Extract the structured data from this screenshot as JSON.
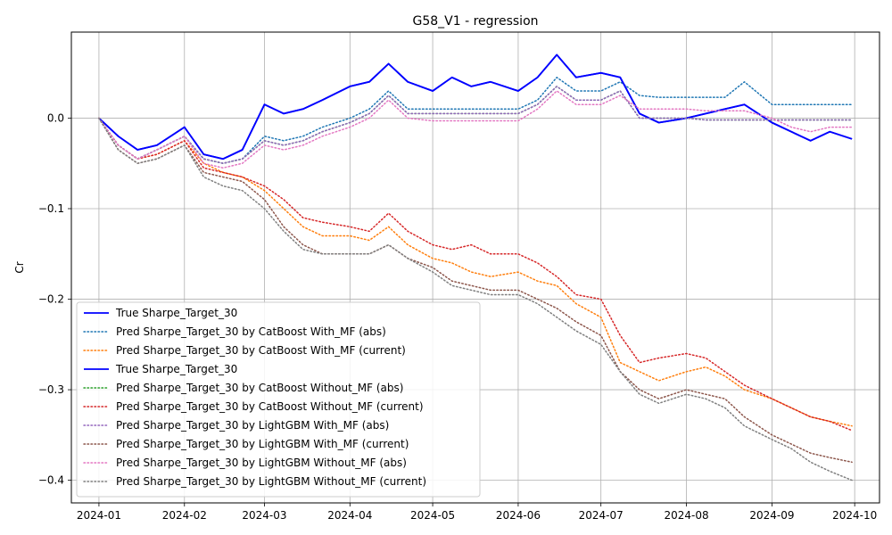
{
  "chart_data": {
    "type": "line",
    "title": "G58_V1 - regression",
    "xlabel": "",
    "ylabel": "Cr",
    "x_ticks": [
      "2024-01",
      "2024-02",
      "2024-03",
      "2024-04",
      "2024-05",
      "2024-06",
      "2024-07",
      "2024-08",
      "2024-09",
      "2024-10"
    ],
    "y_ticks": [
      "0.0",
      "−0.1",
      "−0.2",
      "−0.3",
      "−0.4"
    ],
    "y_tick_values": [
      0.0,
      -0.1,
      -0.2,
      -0.3,
      -0.4
    ],
    "xlim": [
      "2023-12-22",
      "2024-10-10"
    ],
    "ylim": [
      -0.425,
      0.095
    ],
    "grid": true,
    "legend_position": "lower-left",
    "dates": [
      "2024-01-01",
      "2024-01-08",
      "2024-01-15",
      "2024-01-22",
      "2024-02-01",
      "2024-02-08",
      "2024-02-15",
      "2024-02-22",
      "2024-03-01",
      "2024-03-08",
      "2024-03-15",
      "2024-03-22",
      "2024-04-01",
      "2024-04-08",
      "2024-04-15",
      "2024-04-22",
      "2024-05-01",
      "2024-05-08",
      "2024-05-15",
      "2024-05-22",
      "2024-06-01",
      "2024-06-08",
      "2024-06-15",
      "2024-06-22",
      "2024-07-01",
      "2024-07-08",
      "2024-07-15",
      "2024-07-22",
      "2024-08-01",
      "2024-08-08",
      "2024-08-15",
      "2024-08-22",
      "2024-09-01",
      "2024-09-08",
      "2024-09-15",
      "2024-09-22",
      "2024-09-30"
    ],
    "series": [
      {
        "name": "True Sharpe_Target_30",
        "color": "#0000ff",
        "style": "solid",
        "values": [
          0.0,
          -0.02,
          -0.035,
          -0.03,
          -0.01,
          -0.04,
          -0.045,
          -0.035,
          0.015,
          0.005,
          0.01,
          0.02,
          0.035,
          0.04,
          0.06,
          0.04,
          0.03,
          0.045,
          0.035,
          0.04,
          0.03,
          0.045,
          0.07,
          0.045,
          0.05,
          0.045,
          0.005,
          -0.005,
          0.0,
          0.005,
          0.01,
          0.015,
          -0.005,
          -0.015,
          -0.025,
          -0.015,
          -0.023
        ]
      },
      {
        "name": "Pred Sharpe_Target_30 by CatBoost With_MF (abs)",
        "color": "#1f77b4",
        "style": "dotted",
        "values": [
          0.0,
          -0.03,
          -0.045,
          -0.035,
          -0.02,
          -0.045,
          -0.05,
          -0.045,
          -0.02,
          -0.025,
          -0.02,
          -0.01,
          0.0,
          0.01,
          0.03,
          0.01,
          0.01,
          0.01,
          0.01,
          0.01,
          0.01,
          0.02,
          0.045,
          0.03,
          0.03,
          0.04,
          0.025,
          0.023,
          0.023,
          0.023,
          0.023,
          0.04,
          0.015,
          0.015,
          0.015,
          0.015,
          0.015
        ]
      },
      {
        "name": "Pred Sharpe_Target_30 by CatBoost With_MF (current)",
        "color": "#ff7f0e",
        "style": "dotted",
        "values": [
          0.0,
          -0.03,
          -0.045,
          -0.04,
          -0.025,
          -0.05,
          -0.06,
          -0.065,
          -0.08,
          -0.1,
          -0.12,
          -0.13,
          -0.13,
          -0.135,
          -0.12,
          -0.14,
          -0.155,
          -0.16,
          -0.17,
          -0.175,
          -0.17,
          -0.18,
          -0.185,
          -0.205,
          -0.22,
          -0.27,
          -0.28,
          -0.29,
          -0.28,
          -0.275,
          -0.285,
          -0.3,
          -0.31,
          -0.32,
          -0.33,
          -0.335,
          -0.34
        ]
      },
      {
        "name": "True Sharpe_Target_30",
        "color": "#0000ff",
        "style": "solid",
        "values": [
          0.0,
          -0.02,
          -0.035,
          -0.03,
          -0.01,
          -0.04,
          -0.045,
          -0.035,
          0.015,
          0.005,
          0.01,
          0.02,
          0.035,
          0.04,
          0.06,
          0.04,
          0.03,
          0.045,
          0.035,
          0.04,
          0.03,
          0.045,
          0.07,
          0.045,
          0.05,
          0.045,
          0.005,
          -0.005,
          0.0,
          0.005,
          0.01,
          0.015,
          -0.005,
          -0.015,
          -0.025,
          -0.015,
          -0.023
        ]
      },
      {
        "name": "Pred Sharpe_Target_30 by CatBoost Without_MF (abs)",
        "color": "#2ca02c",
        "style": "dotted",
        "values": [
          0.0,
          -0.03,
          -0.045,
          -0.035,
          -0.02,
          -0.045,
          -0.05,
          -0.045,
          -0.025,
          -0.03,
          -0.025,
          -0.015,
          -0.005,
          0.005,
          0.025,
          0.005,
          0.005,
          0.005,
          0.005,
          0.005,
          0.005,
          0.015,
          0.035,
          0.02,
          0.02,
          0.03,
          0.0,
          0.0,
          0.0,
          -0.002,
          -0.002,
          -0.002,
          -0.002,
          -0.002,
          -0.002,
          -0.002,
          -0.002
        ]
      },
      {
        "name": "Pred Sharpe_Target_30 by CatBoost Without_MF (current)",
        "color": "#d62728",
        "style": "dotted",
        "values": [
          0.0,
          -0.03,
          -0.045,
          -0.04,
          -0.025,
          -0.055,
          -0.06,
          -0.065,
          -0.075,
          -0.09,
          -0.11,
          -0.115,
          -0.12,
          -0.125,
          -0.105,
          -0.125,
          -0.14,
          -0.145,
          -0.14,
          -0.15,
          -0.15,
          -0.16,
          -0.175,
          -0.195,
          -0.2,
          -0.24,
          -0.27,
          -0.265,
          -0.26,
          -0.265,
          -0.28,
          -0.295,
          -0.31,
          -0.32,
          -0.33,
          -0.335,
          -0.345
        ]
      },
      {
        "name": "Pred Sharpe_Target_30 by LightGBM With_MF (abs)",
        "color": "#9467bd",
        "style": "dotted",
        "values": [
          0.0,
          -0.03,
          -0.045,
          -0.035,
          -0.02,
          -0.045,
          -0.05,
          -0.045,
          -0.025,
          -0.03,
          -0.025,
          -0.015,
          -0.005,
          0.005,
          0.025,
          0.005,
          0.005,
          0.005,
          0.005,
          0.005,
          0.005,
          0.015,
          0.035,
          0.02,
          0.02,
          0.03,
          0.0,
          0.0,
          0.0,
          -0.002,
          -0.002,
          -0.002,
          -0.002,
          -0.002,
          -0.002,
          -0.002,
          -0.002
        ]
      },
      {
        "name": "Pred Sharpe_Target_30 by LightGBM With_MF (current)",
        "color": "#8c564b",
        "style": "dotted",
        "values": [
          0.0,
          -0.035,
          -0.05,
          -0.045,
          -0.03,
          -0.06,
          -0.065,
          -0.07,
          -0.09,
          -0.12,
          -0.14,
          -0.15,
          -0.15,
          -0.15,
          -0.14,
          -0.155,
          -0.165,
          -0.18,
          -0.185,
          -0.19,
          -0.19,
          -0.2,
          -0.21,
          -0.225,
          -0.24,
          -0.28,
          -0.3,
          -0.31,
          -0.3,
          -0.305,
          -0.31,
          -0.33,
          -0.35,
          -0.36,
          -0.37,
          -0.375,
          -0.38
        ]
      },
      {
        "name": "Pred Sharpe_Target_30 by LightGBM Without_MF (abs)",
        "color": "#e377c2",
        "style": "dotted",
        "values": [
          0.0,
          -0.03,
          -0.045,
          -0.035,
          -0.02,
          -0.05,
          -0.055,
          -0.05,
          -0.03,
          -0.035,
          -0.03,
          -0.02,
          -0.01,
          0.0,
          0.02,
          0.0,
          -0.003,
          -0.003,
          -0.003,
          -0.003,
          -0.003,
          0.01,
          0.03,
          0.015,
          0.015,
          0.025,
          0.01,
          0.01,
          0.01,
          0.008,
          0.008,
          0.008,
          0.0,
          -0.01,
          -0.015,
          -0.01,
          -0.01
        ]
      },
      {
        "name": "Pred Sharpe_Target_30 by LightGBM Without_MF (current)",
        "color": "#7f7f7f",
        "style": "dotted",
        "values": [
          0.0,
          -0.035,
          -0.05,
          -0.045,
          -0.03,
          -0.065,
          -0.075,
          -0.08,
          -0.1,
          -0.125,
          -0.145,
          -0.15,
          -0.15,
          -0.15,
          -0.14,
          -0.155,
          -0.17,
          -0.185,
          -0.19,
          -0.195,
          -0.195,
          -0.205,
          -0.22,
          -0.235,
          -0.25,
          -0.28,
          -0.305,
          -0.315,
          -0.305,
          -0.31,
          -0.32,
          -0.34,
          -0.355,
          -0.365,
          -0.38,
          -0.39,
          -0.4
        ]
      }
    ]
  }
}
